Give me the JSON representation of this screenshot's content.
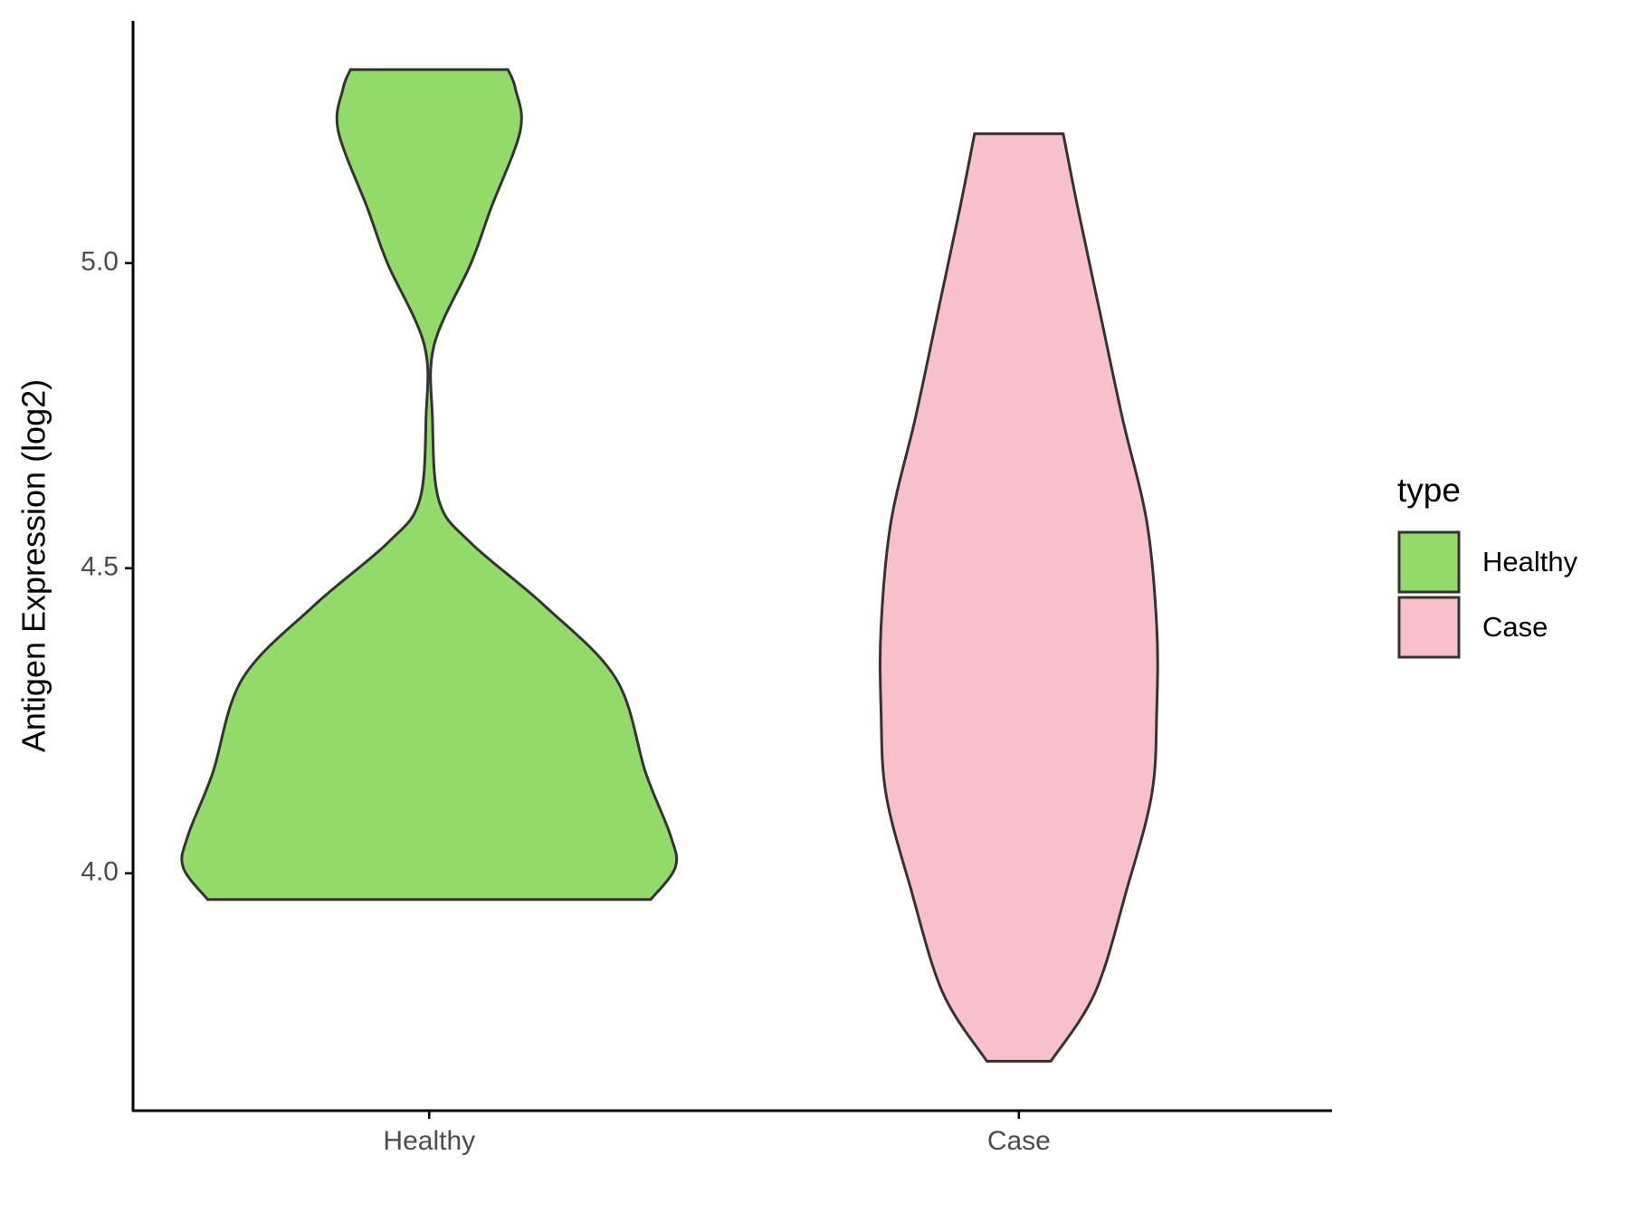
{
  "chart_data": {
    "type": "violin",
    "ylabel": "Antigen Expression (log2)",
    "categories": [
      "Healthy",
      "Case"
    ],
    "ylim": [
      3.611,
      5.397
    ],
    "yticks": [
      {
        "value": 4,
        "label": "4.0"
      },
      4.5,
      {
        "value": 5,
        "label": "5.0"
      }
    ],
    "legend_title": "type",
    "legend": "right",
    "series": [
      {
        "name": "Healthy",
        "color": "#93DB69",
        "y": [
          5.317,
          5.286,
          5.217,
          5.089,
          5.0,
          4.866,
          4.747,
          4.61,
          4.541,
          4.438,
          4.318,
          4.164,
          4.062,
          4.01,
          3.957
        ],
        "width": [
          0.32,
          0.35,
          0.37,
          0.25,
          0.17,
          0.02,
          0.013,
          0.04,
          0.17,
          0.47,
          0.76,
          0.88,
          0.98,
          1.0,
          0.9
        ]
      },
      {
        "name": "Case",
        "color": "#F7C0CB",
        "y": [
          5.212,
          5.089,
          4.918,
          4.747,
          4.575,
          4.404,
          4.267,
          4.13,
          3.976,
          3.805,
          3.692
        ],
        "width": [
          0.18,
          0.24,
          0.33,
          0.42,
          0.52,
          0.56,
          0.56,
          0.54,
          0.44,
          0.31,
          0.13
        ]
      }
    ]
  }
}
